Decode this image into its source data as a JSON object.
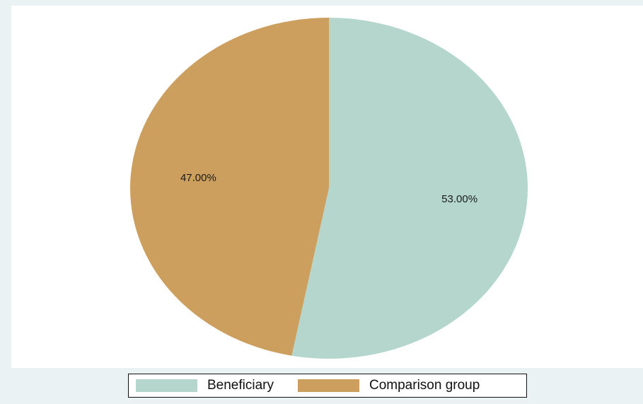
{
  "chart_data": {
    "type": "pie",
    "slices": [
      {
        "label": "Beneficiary",
        "value": 53.0,
        "display": "53.00%",
        "color": "#b4d6cd"
      },
      {
        "label": "Comparison group",
        "value": 47.0,
        "display": "47.00%",
        "color": "#cd9f5f"
      }
    ],
    "start": "12 o'clock",
    "direction": "clockwise",
    "legend": {
      "position": "bottom",
      "entries": [
        "Beneficiary",
        "Comparison group"
      ]
    }
  },
  "colors": {
    "background": "#eaf2f3",
    "plot_background": "#ffffff"
  }
}
